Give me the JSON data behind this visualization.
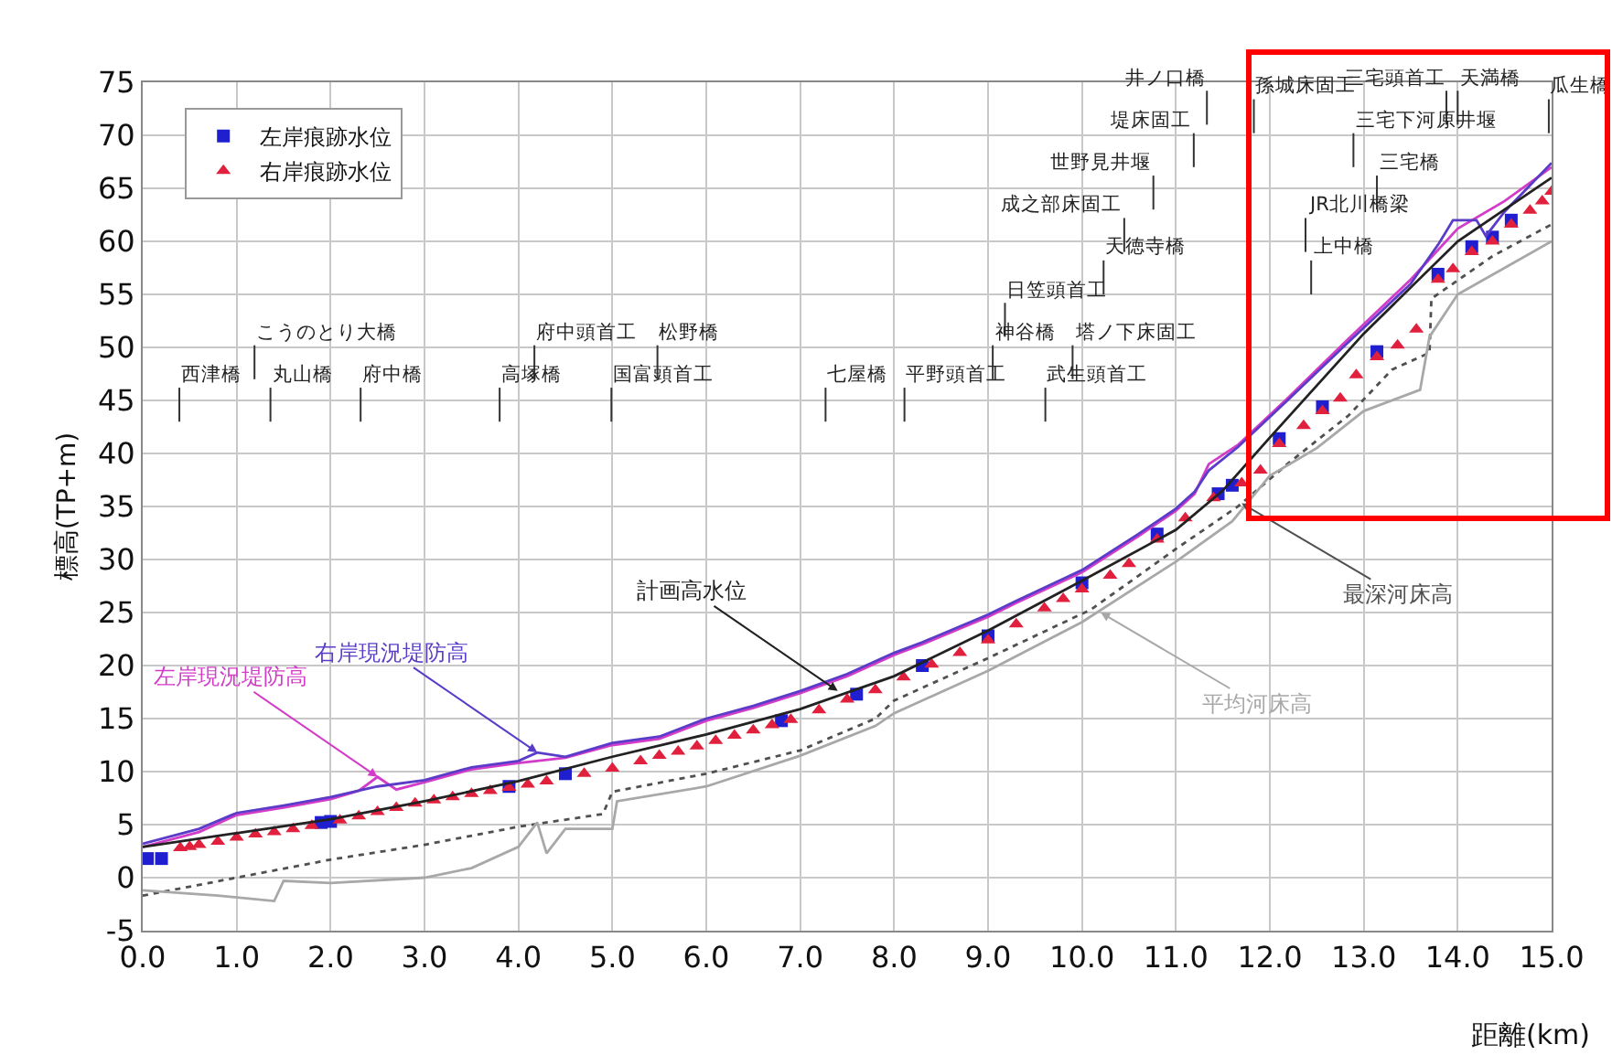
{
  "chart_data": {
    "type": "line",
    "xlabel": "距離(km)",
    "ylabel": "標高(TP+m)",
    "xlim": [
      0,
      15
    ],
    "ylim": [
      -5,
      75
    ],
    "xticks": [
      {
        "value": 0,
        "label": "0.0"
      },
      {
        "value": 1,
        "label": "1.0"
      },
      {
        "value": 2,
        "label": "2.0"
      },
      {
        "value": 3,
        "label": "3.0"
      },
      {
        "value": 4,
        "label": "4.0"
      },
      {
        "value": 5,
        "label": "5.0"
      },
      {
        "value": 6,
        "label": "6.0"
      },
      {
        "value": 7,
        "label": "7.0"
      },
      {
        "value": 8,
        "label": "8.0"
      },
      {
        "value": 9,
        "label": "9.0"
      },
      {
        "value": 10,
        "label": "10.0"
      },
      {
        "value": 11,
        "label": "11.0"
      },
      {
        "value": 12,
        "label": "12.0"
      },
      {
        "value": 13,
        "label": "13.0"
      },
      {
        "value": 14,
        "label": "14.0"
      },
      {
        "value": 15,
        "label": "15.0"
      }
    ],
    "yticks": [
      -5,
      0,
      5,
      10,
      15,
      20,
      25,
      30,
      35,
      40,
      45,
      50,
      55,
      60,
      65,
      70,
      75
    ],
    "grid": true,
    "legend": "top left",
    "series": [
      {
        "name": "左岸痕跡水位",
        "type": "scatter",
        "marker": "square",
        "color": "#1f1fd0",
        "x": [
          0.05,
          0.2,
          1.9,
          2.0,
          3.9,
          4.5,
          6.8,
          7.6,
          8.3,
          9.0,
          10.0,
          10.8,
          11.45,
          11.6,
          12.1,
          12.56,
          13.14,
          13.79,
          14.15,
          14.37,
          14.57
        ],
        "values": [
          1.8,
          1.8,
          5.2,
          5.3,
          8.6,
          9.8,
          14.8,
          17.3,
          20.0,
          22.8,
          27.8,
          32.4,
          36.2,
          37.0,
          41.4,
          44.4,
          49.6,
          56.9,
          59.5,
          60.4,
          62.0
        ]
      },
      {
        "name": "右岸痕跡水位",
        "type": "scatter",
        "marker": "triangle",
        "color": "#e0203c",
        "x": [
          0.4,
          0.5,
          0.6,
          0.8,
          1.0,
          1.2,
          1.4,
          1.6,
          1.8,
          2.1,
          2.3,
          2.5,
          2.7,
          2.9,
          3.1,
          3.3,
          3.5,
          3.7,
          3.9,
          4.1,
          4.3,
          4.7,
          5.0,
          5.3,
          5.5,
          5.7,
          5.9,
          6.1,
          6.3,
          6.5,
          6.7,
          6.9,
          7.2,
          7.5,
          7.8,
          8.1,
          8.4,
          8.7,
          9.0,
          9.3,
          9.6,
          9.8,
          10.0,
          10.3,
          10.5,
          10.8,
          11.1,
          11.4,
          11.7,
          11.9,
          12.1,
          12.36,
          12.56,
          12.75,
          12.92,
          13.14,
          13.36,
          13.56,
          13.79,
          13.95,
          14.15,
          14.37,
          14.57,
          14.77,
          14.9,
          15.0
        ],
        "values": [
          2.8,
          2.9,
          3.1,
          3.4,
          3.8,
          4.1,
          4.3,
          4.6,
          4.9,
          5.4,
          5.8,
          6.2,
          6.6,
          7.0,
          7.3,
          7.6,
          7.9,
          8.2,
          8.5,
          8.8,
          9.1,
          9.8,
          10.3,
          11.0,
          11.5,
          11.9,
          12.4,
          12.9,
          13.4,
          13.9,
          14.4,
          14.9,
          15.8,
          16.8,
          17.7,
          18.9,
          20.1,
          21.2,
          22.4,
          23.9,
          25.4,
          26.3,
          27.2,
          28.5,
          29.6,
          31.9,
          33.9,
          35.8,
          37.2,
          38.4,
          40.9,
          42.6,
          44.0,
          45.2,
          47.4,
          49.1,
          50.2,
          51.7,
          56.4,
          57.4,
          59.0,
          60.0,
          61.6,
          62.9,
          63.8,
          64.7
        ]
      },
      {
        "type": "line",
        "marker": "none",
        "line_style": "solid",
        "color": "#d23cc8",
        "x": [
          0,
          0.6,
          1,
          1.5,
          2,
          2.3,
          2.5,
          2.7,
          3,
          3.5,
          4,
          4.5,
          5,
          5.5,
          6,
          6.5,
          7,
          7.5,
          8,
          8.3,
          9,
          9.3,
          10,
          10.6,
          11,
          11.2,
          11.35,
          11.66,
          12.2,
          12.8,
          13.5,
          14,
          14.5,
          15
        ],
        "values": [
          2.9,
          4.3,
          5.9,
          6.6,
          7.4,
          8.2,
          9.5,
          8.3,
          9.0,
          10.2,
          10.8,
          11.3,
          12.5,
          13.1,
          14.8,
          16,
          17.4,
          19,
          21,
          22,
          24.6,
          25.9,
          28.8,
          32.2,
          34.6,
          36.2,
          39.0,
          40.8,
          45.3,
          50.5,
          56.4,
          61.2,
          63.8,
          67
        ]
      },
      {
        "type": "line",
        "marker": "none",
        "line_style": "solid",
        "color": "#5a3cc8",
        "x": [
          0,
          0.6,
          1,
          1.5,
          2,
          2.5,
          3,
          3.5,
          4,
          4.2,
          4.5,
          5,
          5.5,
          6,
          6.5,
          7,
          7.5,
          8,
          8.3,
          9,
          9.3,
          10,
          10.6,
          11,
          11.2,
          11.35,
          11.66,
          12.2,
          12.8,
          13.5,
          13.8,
          13.95,
          14.2,
          14.3,
          14.5,
          15
        ],
        "values": [
          3.2,
          4.6,
          6.1,
          6.8,
          7.6,
          8.6,
          9.2,
          10.4,
          11.0,
          11.8,
          11.4,
          12.7,
          13.3,
          15.0,
          16.2,
          17.6,
          19.2,
          21.2,
          22.2,
          24.8,
          26.1,
          29.0,
          32.4,
          34.8,
          36.4,
          38.4,
          40.6,
          45.1,
          50.2,
          56,
          59.8,
          62,
          62,
          60.5,
          62.8,
          67.4
        ]
      },
      {
        "type": "line",
        "marker": "none",
        "line_style": "solid",
        "color": "#222222",
        "x": [
          0,
          1,
          2,
          3,
          4,
          5,
          6,
          7,
          8,
          9,
          10,
          11,
          11.5,
          12,
          13,
          14,
          15
        ],
        "values": [
          2.9,
          4.2,
          5.5,
          7.2,
          9.1,
          11.4,
          13.5,
          15.9,
          19,
          23.3,
          28,
          32.8,
          36.5,
          41.5,
          51.3,
          60,
          66
        ]
      },
      {
        "type": "line",
        "marker": "none",
        "line_style": "dotted",
        "color": "#505050",
        "x": [
          0,
          1,
          2,
          3,
          4,
          4.9,
          5.0,
          6,
          7,
          7.8,
          8,
          9,
          10.1,
          11,
          11.66,
          12.2,
          12.84,
          13.3,
          13.7,
          13.72,
          14.37,
          15
        ],
        "values": [
          -1.7,
          0,
          1.7,
          3.1,
          4.8,
          6,
          8.1,
          9.8,
          12,
          15,
          16.7,
          20.7,
          25.3,
          31,
          35,
          39.1,
          43.6,
          47.9,
          49.5,
          54.6,
          58.6,
          61.6
        ]
      },
      {
        "type": "line",
        "marker": "none",
        "line_style": "solid",
        "color": "#a8a8a8",
        "x": [
          0,
          0.8,
          1.4,
          1.5,
          2,
          3,
          3.5,
          4,
          4.2,
          4.3,
          4.5,
          5,
          5.05,
          6,
          7,
          7.8,
          8,
          9,
          10,
          11,
          11.6,
          12,
          12.5,
          13,
          13.6,
          13.7,
          14,
          14.5,
          15
        ],
        "values": [
          -1.2,
          -1.7,
          -2.2,
          -0.3,
          -0.5,
          0,
          0.9,
          2.9,
          5.2,
          2.3,
          4.6,
          4.6,
          7.2,
          8.6,
          11.5,
          14.3,
          15.5,
          19.5,
          24.1,
          29.8,
          33.6,
          37.9,
          40.5,
          44,
          46,
          51,
          55,
          57.5,
          60
        ]
      }
    ],
    "annotations": [
      {
        "text": "左岸現況堤防高",
        "x": 2.5,
        "y": 9.5
      },
      {
        "text": "右岸現況堤防高",
        "x": 4.2,
        "y": 11.8
      },
      {
        "text": "計画高水位",
        "x": 7.4,
        "y": 17.6
      },
      {
        "text": "最深河床高",
        "x": 11.7,
        "y": 35.3
      },
      {
        "text": "平均河床高",
        "x": 10.2,
        "y": 25
      }
    ],
    "ref_lines": [
      {
        "axis": "x",
        "value": 0.39,
        "label": "西津橋"
      },
      {
        "axis": "x",
        "value": 1.19,
        "label": "こうのとり大橋"
      },
      {
        "axis": "x",
        "value": 1.36,
        "label": "丸山橋"
      },
      {
        "axis": "x",
        "value": 2.32,
        "label": "府中橋"
      },
      {
        "axis": "x",
        "value": 3.8,
        "label": "高塚橋"
      },
      {
        "axis": "x",
        "value": 4.17,
        "label": "府中頭首工"
      },
      {
        "axis": "x",
        "value": 4.99,
        "label": "国富頭首工"
      },
      {
        "axis": "x",
        "value": 5.48,
        "label": "松野橋"
      },
      {
        "axis": "x",
        "value": 7.27,
        "label": "七屋橋"
      },
      {
        "axis": "x",
        "value": 8.11,
        "label": "平野頭首工"
      },
      {
        "axis": "x",
        "value": 9.61,
        "label": "武生頭首工"
      },
      {
        "axis": "x",
        "value": 9.18,
        "label": "日笠頭首工"
      },
      {
        "axis": "x",
        "value": 9.05,
        "label": "神谷橋"
      },
      {
        "axis": "x",
        "value": 10.45,
        "label": "成之部床固工"
      },
      {
        "axis": "x",
        "value": 10.76,
        "label": "世野見井堰"
      },
      {
        "axis": "x",
        "value": 9.9,
        "label": "塔ノ下床固工"
      },
      {
        "axis": "x",
        "value": 11.19,
        "label": "堤床固工"
      },
      {
        "axis": "x",
        "value": 10.23,
        "label": "天徳寺橋"
      },
      {
        "axis": "x",
        "value": 11.33,
        "label": "井ノ口橋"
      },
      {
        "axis": "x",
        "value": 12.44,
        "label": "上中橋"
      },
      {
        "axis": "x",
        "value": 12.38,
        "label": "JR北川橋梁"
      },
      {
        "axis": "x",
        "value": 11.83,
        "label": "孫城床固工"
      },
      {
        "axis": "x",
        "value": 13.88,
        "label": "三宅頭首工"
      },
      {
        "axis": "x",
        "value": 14.97,
        "label": "瓜生橋"
      },
      {
        "axis": "x",
        "value": 12.89,
        "label": "三宅下河原井堰"
      },
      {
        "axis": "x",
        "value": 13.14,
        "label": "三宅橋"
      },
      {
        "axis": "x",
        "value": 14.0,
        "label": "天満橋"
      }
    ]
  }
}
